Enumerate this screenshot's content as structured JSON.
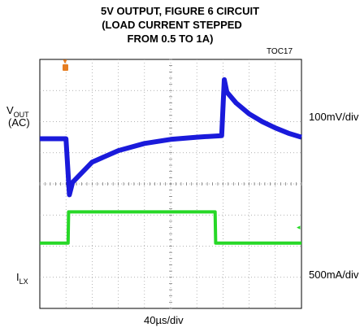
{
  "chart_data": {
    "type": "line",
    "title_lines": [
      "5V OUTPUT, FIGURE 6 CIRCUIT",
      "(LOAD CURRENT STEPPED",
      "FROM 0.5 TO 1A)"
    ],
    "tag": "TOC17",
    "xlabel": "40µs/div",
    "xlim_div": [
      0,
      10
    ],
    "grid": true,
    "series": [
      {
        "name": "VOUT (AC)",
        "color": "#1a1adb",
        "scale": "100mV/div",
        "x_div": [
          0,
          1.0,
          1.13,
          1.25,
          2.0,
          3.0,
          4.0,
          5.0,
          6.0,
          6.95,
          7.05,
          7.15,
          7.5,
          8.0,
          8.5,
          9.0,
          9.5,
          10.0
        ],
        "y_div_rel": [
          0,
          0,
          -1.8,
          -1.4,
          -0.75,
          -0.38,
          -0.15,
          -0.02,
          0.05,
          0.1,
          1.9,
          1.5,
          1.15,
          0.8,
          0.55,
          0.35,
          0.18,
          0.05
        ]
      },
      {
        "name": "ILX",
        "color": "#27d827",
        "scale": "500mA/div",
        "x_div": [
          0,
          1.08,
          1.1,
          6.7,
          6.72,
          10.0
        ],
        "y_div_rel": [
          0,
          0,
          1.0,
          1.0,
          0,
          0
        ]
      }
    ],
    "channels": [
      {
        "main": "V",
        "sub": "OUT",
        "line2": "(AC)",
        "scale": "100mV/div"
      },
      {
        "main": "I",
        "sub": "LX",
        "scale": "500mA/div"
      }
    ]
  }
}
